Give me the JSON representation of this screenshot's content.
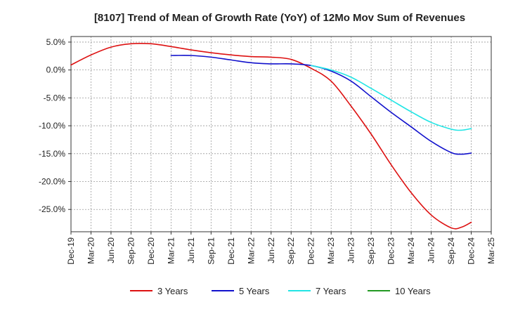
{
  "chart_data": {
    "type": "line",
    "title": "[8107]  Trend of Mean of Growth Rate (YoY) of 12Mo Mov Sum of Revenues",
    "xlabel": "",
    "ylabel": "",
    "ylim": [
      -29,
      6
    ],
    "yticks": [
      5,
      0,
      -5,
      -10,
      -15,
      -20,
      -25
    ],
    "ytick_labels": [
      "5.0%",
      "0.0%",
      "-5.0%",
      "-10.0%",
      "-15.0%",
      "-20.0%",
      "-25.0%"
    ],
    "x_tick_labels": [
      "Dec-19",
      "Mar-20",
      "Jun-20",
      "Sep-20",
      "Dec-20",
      "Mar-21",
      "Jun-21",
      "Sep-21",
      "Dec-21",
      "Mar-22",
      "Jun-22",
      "Sep-22",
      "Dec-22",
      "Mar-23",
      "Jun-23",
      "Sep-23",
      "Dec-23",
      "Mar-24",
      "Jun-24",
      "Sep-24",
      "Dec-24",
      "Mar-25"
    ],
    "grid": true,
    "legend_position": "bottom",
    "series": [
      {
        "name": "3 Years",
        "color": "#dd1111",
        "x": [
          0,
          1,
          2,
          3,
          4,
          5,
          6,
          7,
          8,
          9,
          10,
          11,
          12,
          13,
          14,
          15,
          16,
          17,
          18,
          19,
          19.5,
          20
        ],
        "values": [
          0.9,
          2.7,
          4.1,
          4.7,
          4.7,
          4.2,
          3.6,
          3.1,
          2.7,
          2.4,
          2.3,
          1.9,
          0.3,
          -2.0,
          -6.5,
          -11.5,
          -17.0,
          -22.0,
          -26.0,
          -28.3,
          -28.2,
          -27.3
        ]
      },
      {
        "name": "5 Years",
        "color": "#1111cc",
        "x": [
          5,
          6,
          7,
          8,
          9,
          10,
          11,
          12,
          13,
          14,
          15,
          16,
          17,
          18,
          19,
          19.5,
          20
        ],
        "values": [
          2.6,
          2.6,
          2.3,
          1.8,
          1.3,
          1.1,
          1.1,
          0.8,
          -0.2,
          -2.0,
          -4.8,
          -7.6,
          -10.2,
          -12.8,
          -14.8,
          -15.1,
          -14.9
        ]
      },
      {
        "name": "7 Years",
        "color": "#22e5e5",
        "x": [
          12,
          13,
          14,
          15,
          16,
          17,
          18,
          19,
          19.5,
          20
        ],
        "values": [
          0.8,
          0.0,
          -1.3,
          -3.3,
          -5.4,
          -7.5,
          -9.4,
          -10.6,
          -10.8,
          -10.5
        ]
      },
      {
        "name": "10 Years",
        "color": "#229922",
        "x": [],
        "values": []
      }
    ]
  }
}
